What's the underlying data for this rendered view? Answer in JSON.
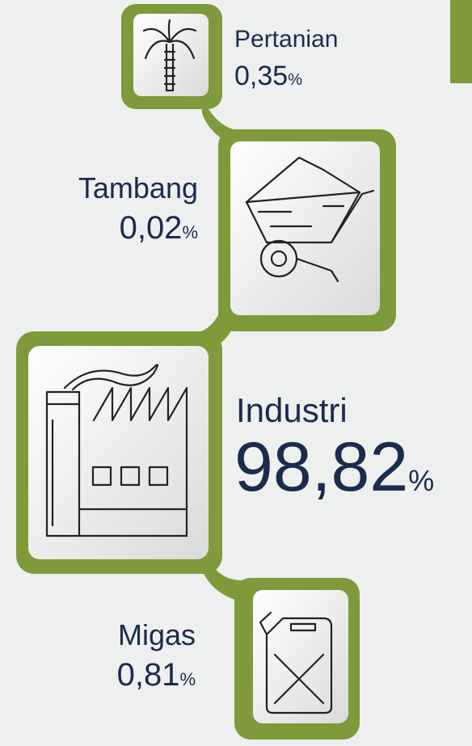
{
  "items": [
    {
      "label": "Pertanian",
      "value": "0,35",
      "unit": "%"
    },
    {
      "label": "Tambang",
      "value": "0,02",
      "unit": "%"
    },
    {
      "label": "Industri",
      "value": "98,82",
      "unit": "%"
    },
    {
      "label": "Migas",
      "value": "0,81",
      "unit": "%"
    }
  ]
}
